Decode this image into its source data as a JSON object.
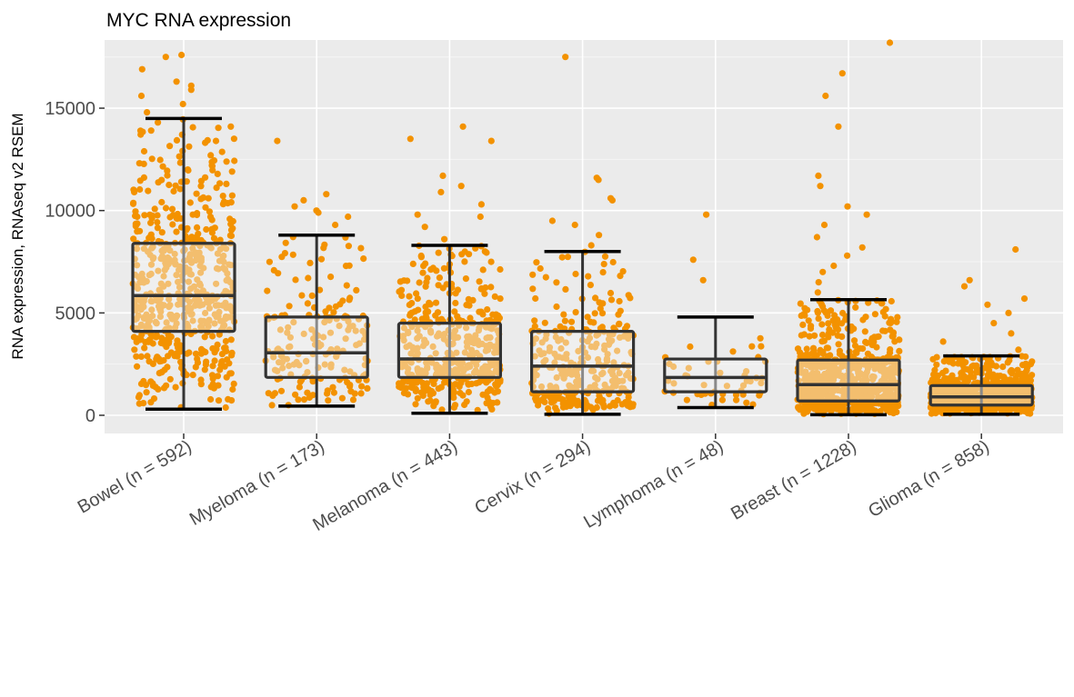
{
  "chart_data": {
    "type": "box",
    "title": "MYC RNA expression",
    "xlabel": "",
    "ylabel": "RNA expression, RNAseq v2 RSEM",
    "ylim": [
      -700,
      18200
    ],
    "yticks": [
      0,
      5000,
      10000,
      15000
    ],
    "ytick_labels": [
      "0",
      "5000",
      "10000",
      "15000"
    ],
    "grid": true,
    "point_color": "#f39200",
    "point_color_light": "#f8c77a",
    "box_fill": "#f5f5f5",
    "box_stroke": "#333333",
    "panel_color": "#ebebeb",
    "categories": [
      {
        "label": "Bowel (n = 592)",
        "n": 592,
        "min": 300,
        "q1": 4100,
        "median": 5850,
        "q3": 8400,
        "max": 14500,
        "outliers": [
          14800,
          15200,
          15600,
          15900,
          16100,
          16300,
          16900,
          17500,
          17600
        ]
      },
      {
        "label": "Myeloma (n = 173)",
        "n": 173,
        "min": 450,
        "q1": 1850,
        "median": 3050,
        "q3": 4800,
        "max": 8800,
        "outliers": [
          9300,
          9700,
          9900,
          10000,
          10200,
          10500,
          10800,
          13400
        ]
      },
      {
        "label": "Melanoma (n = 443)",
        "n": 443,
        "min": 100,
        "q1": 1850,
        "median": 2750,
        "q3": 4500,
        "max": 8300,
        "outliers": [
          8600,
          9200,
          9700,
          9800,
          10300,
          10900,
          11200,
          11700,
          13400,
          13500,
          14100
        ]
      },
      {
        "label": "Cervix (n = 294)",
        "n": 294,
        "min": 50,
        "q1": 1150,
        "median": 2400,
        "q3": 4100,
        "max": 8000,
        "outliers": [
          8300,
          8800,
          9300,
          9500,
          10500,
          10600,
          11500,
          11600,
          17500
        ]
      },
      {
        "label": "Lymphoma (n = 48)",
        "n": 48,
        "min": 380,
        "q1": 1150,
        "median": 1850,
        "q3": 2750,
        "max": 4800,
        "outliers": [
          6600,
          7600,
          9800
        ]
      },
      {
        "label": "Breast (n = 1228)",
        "n": 1228,
        "min": 30,
        "q1": 700,
        "median": 1500,
        "q3": 2700,
        "max": 5650,
        "outliers": [
          6000,
          6500,
          7000,
          7300,
          7800,
          8200,
          8700,
          9300,
          9800,
          10200,
          11200,
          11700,
          14100,
          15600,
          16700,
          18200
        ]
      },
      {
        "label": "Glioma (n = 858)",
        "n": 858,
        "min": 50,
        "q1": 500,
        "median": 900,
        "q3": 1450,
        "max": 2900,
        "outliers": [
          3200,
          3600,
          4000,
          4500,
          5000,
          5400,
          5700,
          6300,
          6600,
          8100
        ]
      }
    ]
  }
}
